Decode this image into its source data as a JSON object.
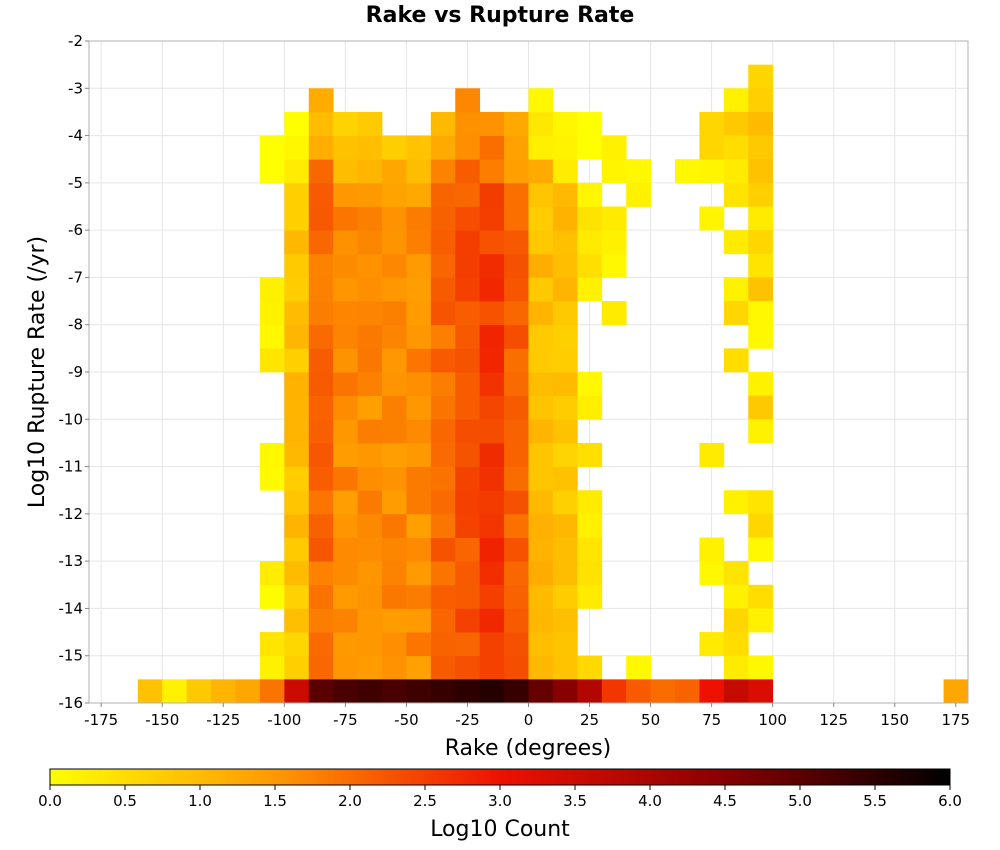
{
  "chart_data": {
    "type": "heatmap",
    "title": "Rake vs Rupture Rate",
    "xlabel": "Rake (degrees)",
    "ylabel": "Log10 Rupture Rate (/yr)",
    "xlim": [
      -180,
      180
    ],
    "ylim": [
      -16,
      -2
    ],
    "x_ticks": [
      "-175",
      "-150",
      "-125",
      "-100",
      "-75",
      "-50",
      "-25",
      "0",
      "25",
      "50",
      "75",
      "100",
      "125",
      "150",
      "175"
    ],
    "x_tick_values": [
      -175,
      -150,
      -125,
      -100,
      -75,
      -50,
      -25,
      0,
      25,
      50,
      75,
      100,
      125,
      150,
      175
    ],
    "y_ticks": [
      "-2",
      "-3",
      "-4",
      "-5",
      "-6",
      "-7",
      "-8",
      "-9",
      "-10",
      "-11",
      "-12",
      "-13",
      "-14",
      "-15",
      "-16"
    ],
    "y_tick_values": [
      -2,
      -3,
      -4,
      -5,
      -6,
      -7,
      -8,
      -9,
      -10,
      -11,
      -12,
      -13,
      -14,
      -15,
      -16
    ],
    "bin_width_x": 10,
    "bin_height_y": 0.5,
    "grid": true,
    "colorbar": {
      "label": "Log10 Count",
      "min": 0.0,
      "max": 6.0,
      "ticks": [
        "0.0",
        "0.5",
        "1.0",
        "1.5",
        "2.0",
        "2.5",
        "3.0",
        "3.5",
        "4.0",
        "4.5",
        "5.0",
        "5.5",
        "6.0"
      ],
      "tick_values": [
        0.0,
        0.5,
        1.0,
        1.5,
        2.0,
        2.5,
        3.0,
        3.5,
        4.0,
        4.5,
        5.0,
        5.5,
        6.0
      ],
      "stops": [
        {
          "v": 0.0,
          "color": "#ffff00"
        },
        {
          "v": 1.5,
          "color": "#ff9900"
        },
        {
          "v": 3.0,
          "color": "#ee1100"
        },
        {
          "v": 4.5,
          "color": "#880000"
        },
        {
          "v": 6.0,
          "color": "#000000"
        }
      ]
    }
  }
}
